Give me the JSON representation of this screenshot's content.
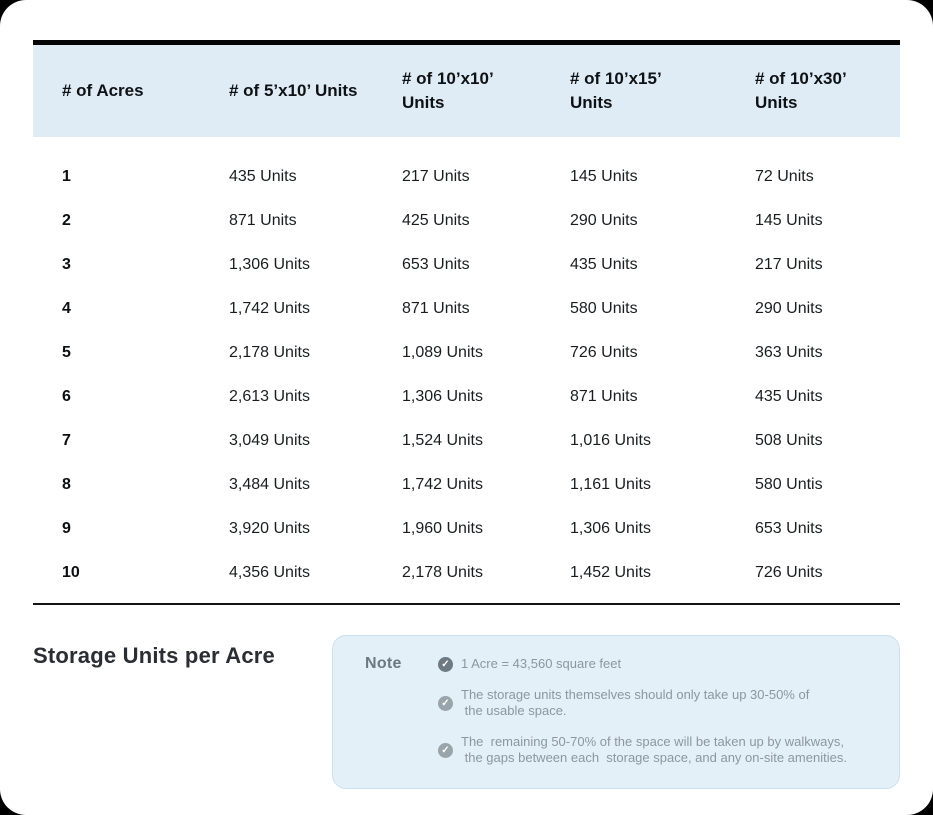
{
  "table": {
    "headers": [
      "# of Acres",
      "# of 5’x10’ Units",
      "# of 10’x10’ Units",
      "# of 10’x15’ Units",
      "# of 10’x30’ Units"
    ],
    "rows": [
      [
        "1",
        "435 Units",
        "217 Units",
        "145 Units",
        "72 Units"
      ],
      [
        "2",
        "871 Units",
        "425 Units",
        "290 Units",
        "145 Units"
      ],
      [
        "3",
        "1,306 Units",
        "653 Units",
        "435 Units",
        "217 Units"
      ],
      [
        "4",
        "1,742 Units",
        "871 Units",
        "580 Units",
        "290 Units"
      ],
      [
        "5",
        "2,178 Units",
        "1,089 Units",
        "726 Units",
        "363 Units"
      ],
      [
        "6",
        "2,613 Units",
        "1,306 Units",
        "871 Units",
        "435 Units"
      ],
      [
        "7",
        "3,049 Units",
        "1,524 Units",
        "1,016 Units",
        "508 Units"
      ],
      [
        "8",
        "3,484 Units",
        "1,742 Units",
        "1,161 Units",
        "580 Untis"
      ],
      [
        "9",
        "3,920 Units",
        "1,960 Units",
        "1,306 Units",
        "653 Units"
      ],
      [
        "10",
        "4,356 Units",
        "2,178 Units",
        "1,452 Units",
        "726 Units"
      ]
    ]
  },
  "footer": {
    "title": "Storage Units per Acre",
    "note": {
      "label": "Note",
      "icon_glyph": "✓",
      "items": [
        {
          "line1": "1 Acre = 43,560 square feet",
          "line2": "",
          "icon_color": "#6e7a83"
        },
        {
          "line1": "The storage units themselves should only take up 30-50% of",
          "line2": " the usable space.",
          "icon_color": "#9aa4ab"
        },
        {
          "line1": "The  remaining 50-70% of the space will be taken up by walkways,",
          "line2": " the gaps between each  storage space, and any on-site amenities.",
          "icon_color": "#9aa4ab"
        }
      ]
    }
  },
  "colors": {
    "header_bg": "#e0ecf5",
    "note_bg": "#e4f0f8",
    "note_border": "#cbe0ee",
    "top_bar": "#050505",
    "table_text": "#1a1d20",
    "note_text": "#8d969d"
  },
  "chart_data": {
    "type": "table",
    "title": "Storage Units per Acre",
    "columns": [
      "# of Acres",
      "# of 5'x10' Units",
      "# of 10'x10' Units",
      "# of 10'x15' Units",
      "# of 10'x30' Units"
    ],
    "rows": [
      [
        1,
        435,
        217,
        145,
        72
      ],
      [
        2,
        871,
        425,
        290,
        145
      ],
      [
        3,
        1306,
        653,
        435,
        217
      ],
      [
        4,
        1742,
        871,
        580,
        290
      ],
      [
        5,
        2178,
        1089,
        726,
        363
      ],
      [
        6,
        2613,
        1306,
        871,
        435
      ],
      [
        7,
        3049,
        1524,
        1016,
        508
      ],
      [
        8,
        3484,
        1742,
        1161,
        580
      ],
      [
        9,
        3920,
        1960,
        1306,
        653
      ],
      [
        10,
        4356,
        2178,
        1452,
        726
      ]
    ],
    "notes": [
      "1 Acre = 43,560 square feet",
      "The storage units themselves should only take up 30-50% of the usable space.",
      "The remaining 50-70% of the space will be taken up by walkways, the gaps between each storage space, and any on-site amenities."
    ]
  }
}
